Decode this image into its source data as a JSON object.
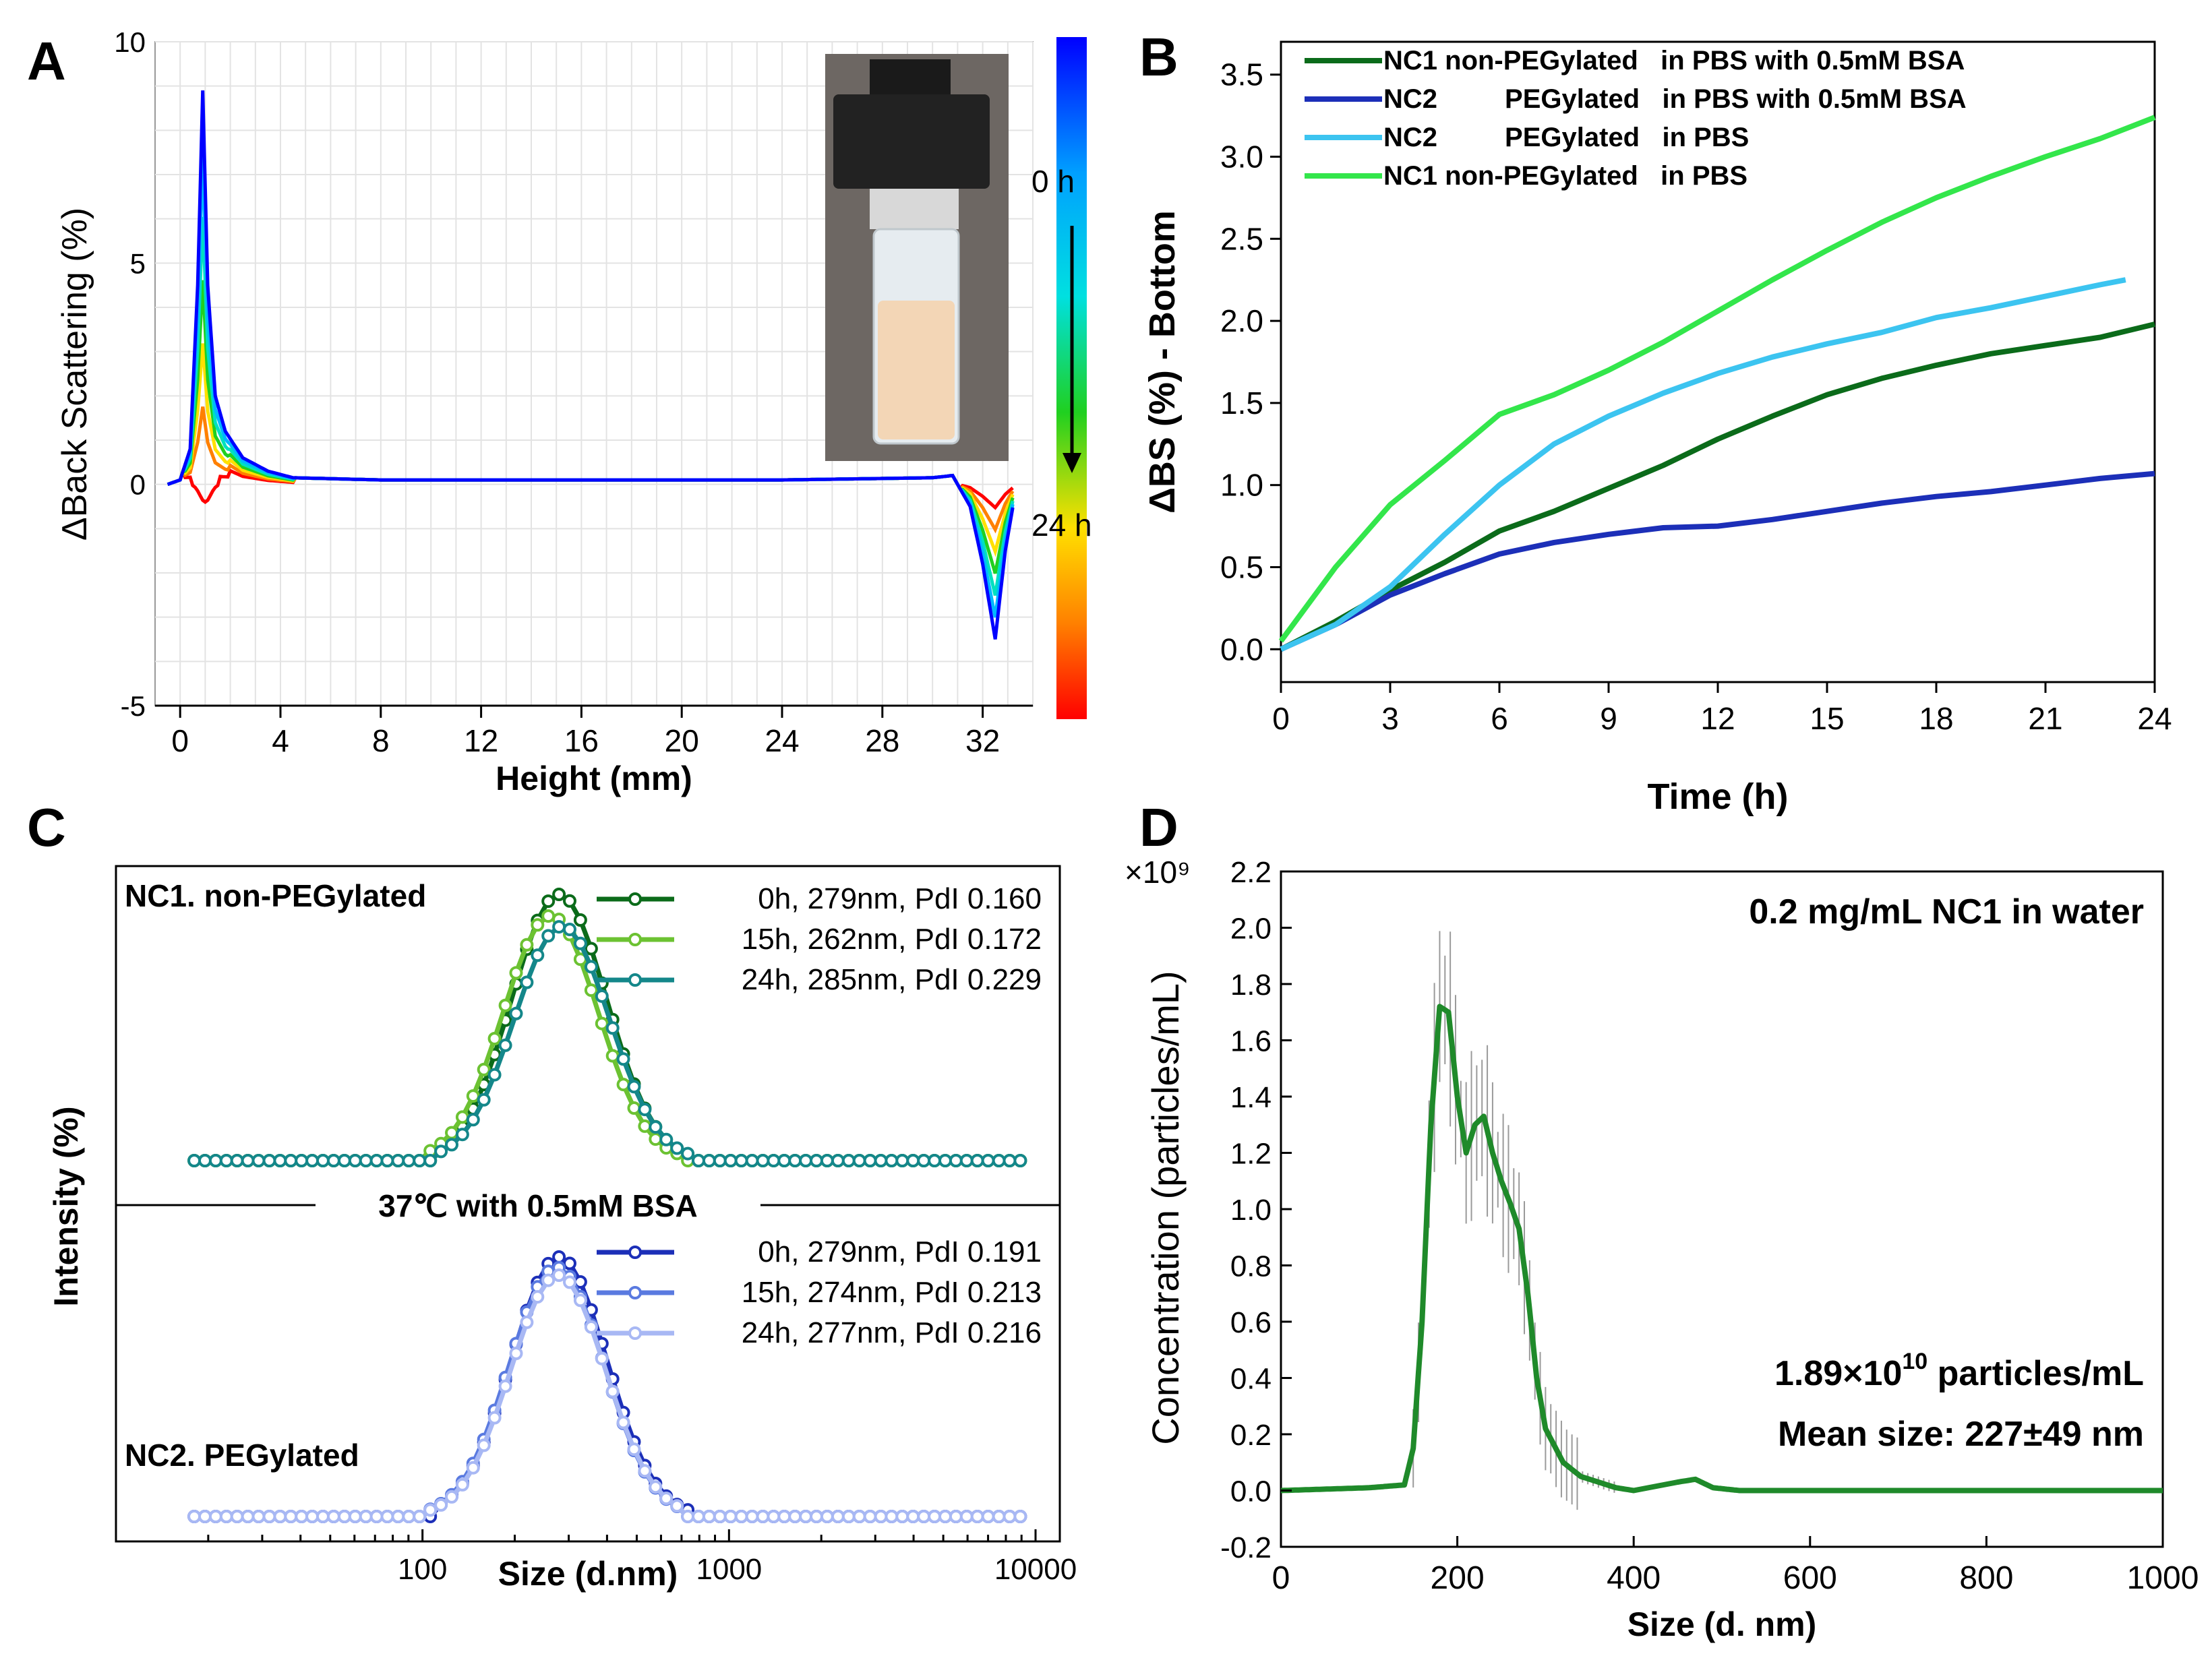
{
  "chart_data": [
    {
      "panel": "A",
      "type": "line",
      "xlabel": "Height (mm)",
      "ylabel": "ΔBack Scattering (%)",
      "xlim": [
        -1,
        34
      ],
      "ylim": [
        -5,
        10
      ],
      "xticks": [
        "0",
        "4",
        "8",
        "12",
        "16",
        "20",
        "24",
        "28",
        "32"
      ],
      "yticks": [
        "10",
        "5",
        "0",
        "-5"
      ],
      "colorbar_labels": [
        "0 h",
        "24 h"
      ],
      "colors": [
        "#0000ff",
        "#00b7ff",
        "#00e0c0",
        "#20d020",
        "#ffe000",
        "#ff8000",
        "#ff0000"
      ],
      "peak_profile": {
        "x": [
          -0.5,
          0,
          0.4,
          0.7,
          0.9,
          1.1,
          1.4,
          1.8,
          2.5,
          3.5,
          4.5,
          8,
          16,
          24,
          30,
          30.8,
          31.5,
          32,
          32.5,
          32.9,
          33.3
        ],
        "y": [
          0,
          0.1,
          0.8,
          4.5,
          8.9,
          4.5,
          2.0,
          1.2,
          0.6,
          0.3,
          0.15,
          0.1,
          0.1,
          0.1,
          0.15,
          0.2,
          -0.5,
          -1.8,
          -3.5,
          -1.5,
          -0.2
        ]
      }
    },
    {
      "panel": "B",
      "type": "line",
      "xlabel": "Time (h)",
      "ylabel": "ΔBS (%) - Bottom",
      "xlim": [
        0,
        24
      ],
      "ylim": [
        -0.2,
        3.7
      ],
      "xticks": [
        "0",
        "3",
        "6",
        "9",
        "12",
        "15",
        "18",
        "21",
        "24"
      ],
      "yticks": [
        "0.0",
        "0.5",
        "1.0",
        "1.5",
        "2.0",
        "2.5",
        "3.0",
        "3.5"
      ],
      "series": [
        {
          "name": "NC1 non-PEGylated   in PBS with 0.5mM BSA",
          "color": "#0b6b1a",
          "x": [
            0,
            1.5,
            3,
            4.5,
            6,
            7.5,
            9,
            10.5,
            12,
            13.5,
            15,
            16.5,
            18,
            19.5,
            21,
            22.5,
            24
          ],
          "y": [
            0,
            0.17,
            0.36,
            0.53,
            0.72,
            0.84,
            0.98,
            1.12,
            1.28,
            1.42,
            1.55,
            1.65,
            1.73,
            1.8,
            1.85,
            1.9,
            1.98
          ]
        },
        {
          "name": "NC2         PEGylated   in PBS with 0.5mM BSA",
          "color": "#1c2fb8",
          "x": [
            0,
            1.5,
            3,
            4.5,
            6,
            7.5,
            9,
            10.5,
            12,
            13.5,
            15,
            16.5,
            18,
            19.5,
            21,
            22.5,
            24
          ],
          "y": [
            0,
            0.15,
            0.33,
            0.46,
            0.58,
            0.65,
            0.7,
            0.74,
            0.75,
            0.79,
            0.84,
            0.89,
            0.93,
            0.96,
            1.0,
            1.04,
            1.07
          ]
        },
        {
          "name": "NC2         PEGylated   in PBS",
          "color": "#3cc4f0",
          "x": [
            0,
            1.5,
            3,
            4.5,
            6,
            7.5,
            9,
            10.5,
            12,
            13.5,
            15,
            16.5,
            18,
            19.5,
            21,
            22.5,
            23.2
          ],
          "y": [
            0,
            0.15,
            0.38,
            0.7,
            1.0,
            1.25,
            1.42,
            1.56,
            1.68,
            1.78,
            1.86,
            1.93,
            2.02,
            2.08,
            2.15,
            2.22,
            2.25
          ]
        },
        {
          "name": "NC1 non-PEGylated   in PBS",
          "color": "#33e64b",
          "x": [
            0,
            1.5,
            3,
            4.5,
            6,
            7.5,
            9,
            10.5,
            12,
            13.5,
            15,
            16.5,
            18,
            19.5,
            21,
            22.5,
            24
          ],
          "y": [
            0.05,
            0.5,
            0.88,
            1.15,
            1.43,
            1.55,
            1.7,
            1.87,
            2.06,
            2.25,
            2.43,
            2.6,
            2.75,
            2.88,
            3.0,
            3.11,
            3.24
          ]
        }
      ]
    },
    {
      "panel": "C",
      "type": "line",
      "xlabel": "Size (d.nm)",
      "ylabel": "Intensity (%)",
      "xscale": "log",
      "xlim": [
        10,
        12000
      ],
      "xticks": [
        "100",
        "1000",
        "10000"
      ],
      "divider_label": "37℃ with 0.5mM  BSA",
      "group_labels": [
        "NC1. non-PEGylated",
        "NC2. PEGylated"
      ],
      "series": [
        {
          "name": "0h,  279nm, PdI 0.160",
          "group": "NC1",
          "color": "#0b6b1a",
          "mean_nm": 279,
          "peak": 1.0
        },
        {
          "name": "15h, 262nm, PdI 0.172",
          "group": "NC1",
          "color": "#6cc232",
          "mean_nm": 262,
          "peak": 0.92
        },
        {
          "name": "24h, 285nm, PdI 0.229",
          "group": "NC1",
          "color": "#14878a",
          "mean_nm": 285,
          "peak": 0.88
        },
        {
          "name": "0h,  279nm, PdI 0.191",
          "group": "NC2",
          "color": "#1c2fb8",
          "mean_nm": 279,
          "peak": 1.0
        },
        {
          "name": "15h, 274nm, PdI 0.213",
          "group": "NC2",
          "color": "#5a7ae0",
          "mean_nm": 274,
          "peak": 0.96
        },
        {
          "name": "24h, 277nm, PdI 0.216",
          "group": "NC2",
          "color": "#a8b8f4",
          "mean_nm": 277,
          "peak": 0.93
        }
      ]
    },
    {
      "panel": "D",
      "type": "line",
      "xlabel": "Size (d. nm)",
      "ylabel": "Concentration (particles/mL)",
      "y_multiplier": "×10⁹",
      "xlim": [
        0,
        1000
      ],
      "ylim": [
        -0.2,
        2.2
      ],
      "xticks": [
        "0",
        "200",
        "400",
        "600",
        "800",
        "1000"
      ],
      "yticks": [
        "-0.2",
        "0.0",
        "0.2",
        "0.4",
        "0.6",
        "0.8",
        "1.0",
        "1.2",
        "1.4",
        "1.6",
        "1.8",
        "2.0",
        "2.2"
      ],
      "title": "0.2 mg/mL NC1 in water",
      "annotation_conc_base": "1.89×10",
      "annotation_conc_exp": "10",
      "annotation_conc_unit": " particles/mL",
      "annotation_mean": "Mean size: 227±49 nm",
      "series": [
        {
          "name": "NC1 in water",
          "color": "#1f8a2a",
          "x": [
            0,
            100,
            140,
            150,
            160,
            170,
            180,
            190,
            200,
            210,
            220,
            230,
            240,
            250,
            260,
            270,
            280,
            290,
            300,
            320,
            340,
            360,
            380,
            400,
            450,
            470,
            490,
            520,
            600,
            800,
            1000
          ],
          "y": [
            0,
            0.01,
            0.02,
            0.15,
            0.6,
            1.3,
            1.72,
            1.7,
            1.4,
            1.2,
            1.3,
            1.33,
            1.2,
            1.1,
            1.02,
            0.93,
            0.7,
            0.4,
            0.22,
            0.1,
            0.05,
            0.03,
            0.01,
            0,
            0.03,
            0.04,
            0.01,
            0,
            0,
            0,
            0
          ]
        }
      ]
    }
  ],
  "panel_labels": [
    "A",
    "B",
    "C",
    "D"
  ]
}
